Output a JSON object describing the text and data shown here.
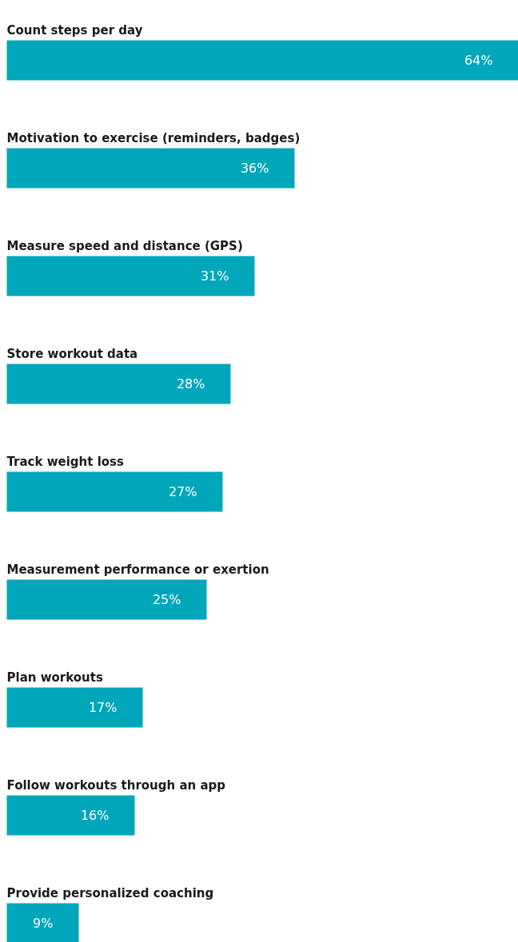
{
  "chart_data": {
    "type": "bar",
    "orientation": "horizontal",
    "categories": [
      "Count steps per day",
      "Motivation to exercise (reminders, badges)",
      "Measure speed and distance (GPS)",
      "Store workout data",
      "Track weight loss",
      "Measurement performance or exertion",
      "Plan workouts",
      "Follow workouts through an app",
      "Provide personalized coaching"
    ],
    "values": [
      64,
      36,
      31,
      28,
      27,
      25,
      17,
      16,
      9
    ],
    "value_labels": [
      "64%",
      "36%",
      "31%",
      "28%",
      "27%",
      "25%",
      "17%",
      "16%",
      "9%"
    ],
    "color": "#00a6b9",
    "tick_labels": false,
    "grid": false
  }
}
